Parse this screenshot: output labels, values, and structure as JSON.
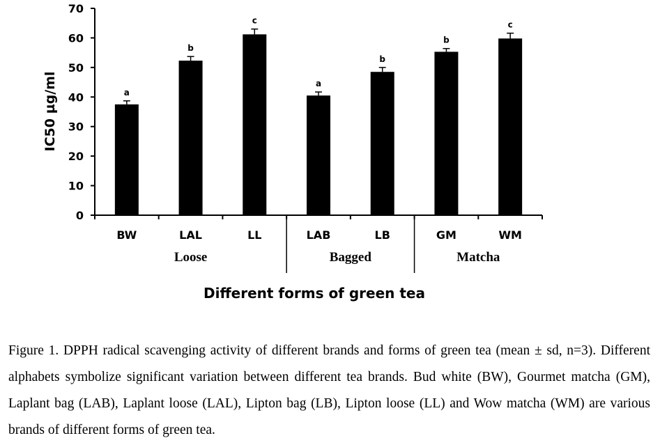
{
  "chart_data": {
    "type": "bar",
    "categories": [
      "BW",
      "LAL",
      "LL",
      "LAB",
      "LB",
      "GM",
      "WM"
    ],
    "values": [
      37.5,
      52.3,
      61.2,
      40.5,
      48.5,
      55.3,
      59.8
    ],
    "errors": [
      1.2,
      1.4,
      1.8,
      1.2,
      1.5,
      1.1,
      1.8
    ],
    "significance": [
      "a",
      "b",
      "c",
      "a",
      "b",
      "b",
      "c"
    ],
    "groups": [
      {
        "name": "Loose",
        "categories": [
          "BW",
          "LAL",
          "LL"
        ]
      },
      {
        "name": "Bagged",
        "categories": [
          "LAB",
          "LB"
        ]
      },
      {
        "name": "Matcha",
        "categories": [
          "GM",
          "WM"
        ]
      }
    ],
    "title": "",
    "xlabel": "Different forms of green tea",
    "ylabel": "IC50 µg/ml",
    "ylim": [
      0,
      70
    ],
    "yticks": [
      "0",
      "10",
      "20",
      "30",
      "40",
      "50",
      "60",
      "70"
    ],
    "bar_color": "#000000",
    "grid": false
  },
  "caption": "Figure 1. DPPH radical scavenging activity of different brands and forms of green tea (mean ± sd, n=3). Different alphabets symbolize significant variation between different tea brands. Bud white (BW), Gourmet matcha (GM), Laplant bag (LAB), Laplant loose (LAL), Lipton bag (LB), Lipton loose (LL) and Wow matcha (WM) are various brands of different forms of green tea."
}
